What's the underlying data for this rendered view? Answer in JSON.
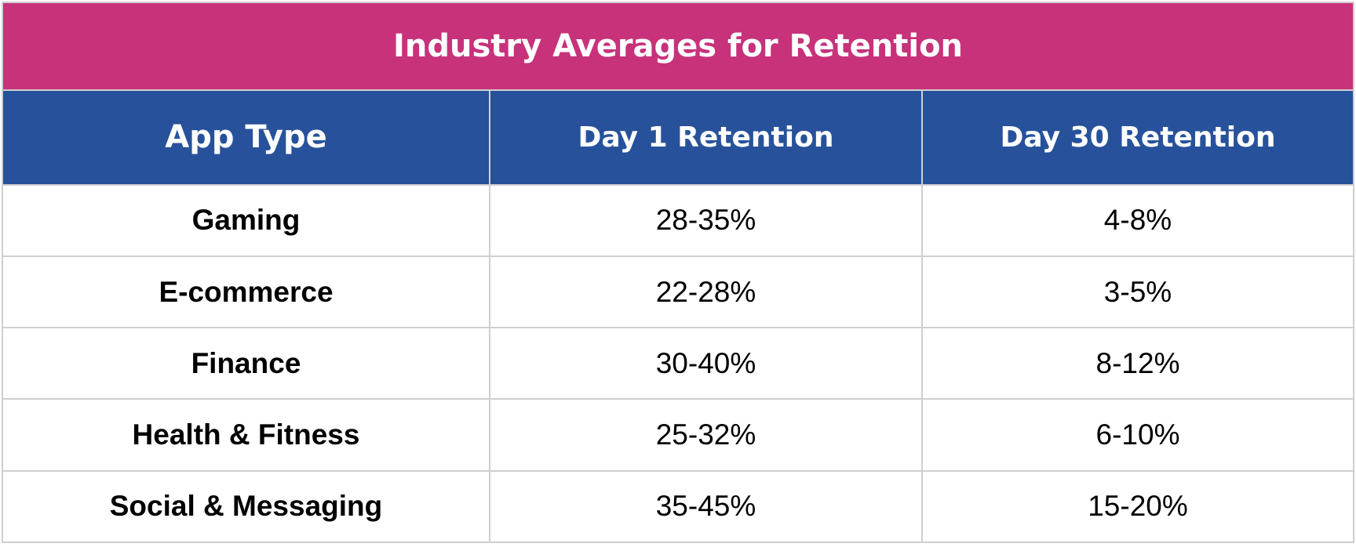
{
  "title": "Industry Averages for Retention",
  "headers": [
    "App Type",
    "Day 1 Retention",
    "Day 30 Retention"
  ],
  "rows": [
    {
      "app_type": "Gaming",
      "day1": "28-35%",
      "day30": "4-8%"
    },
    {
      "app_type": "E-commerce",
      "day1": "22-28%",
      "day30": "3-5%"
    },
    {
      "app_type": "Finance",
      "day1": "30-40%",
      "day30": "8-12%"
    },
    {
      "app_type": "Health & Fitness",
      "day1": "25-32%",
      "day30": "6-10%"
    },
    {
      "app_type": "Social & Messaging",
      "day1": "35-45%",
      "day30": "15-20%"
    }
  ],
  "colors": {
    "title_background": "#c7327a",
    "header_background": "#27529b",
    "header_text": "#ffffff",
    "grid_lines": "#cfcfcf"
  }
}
